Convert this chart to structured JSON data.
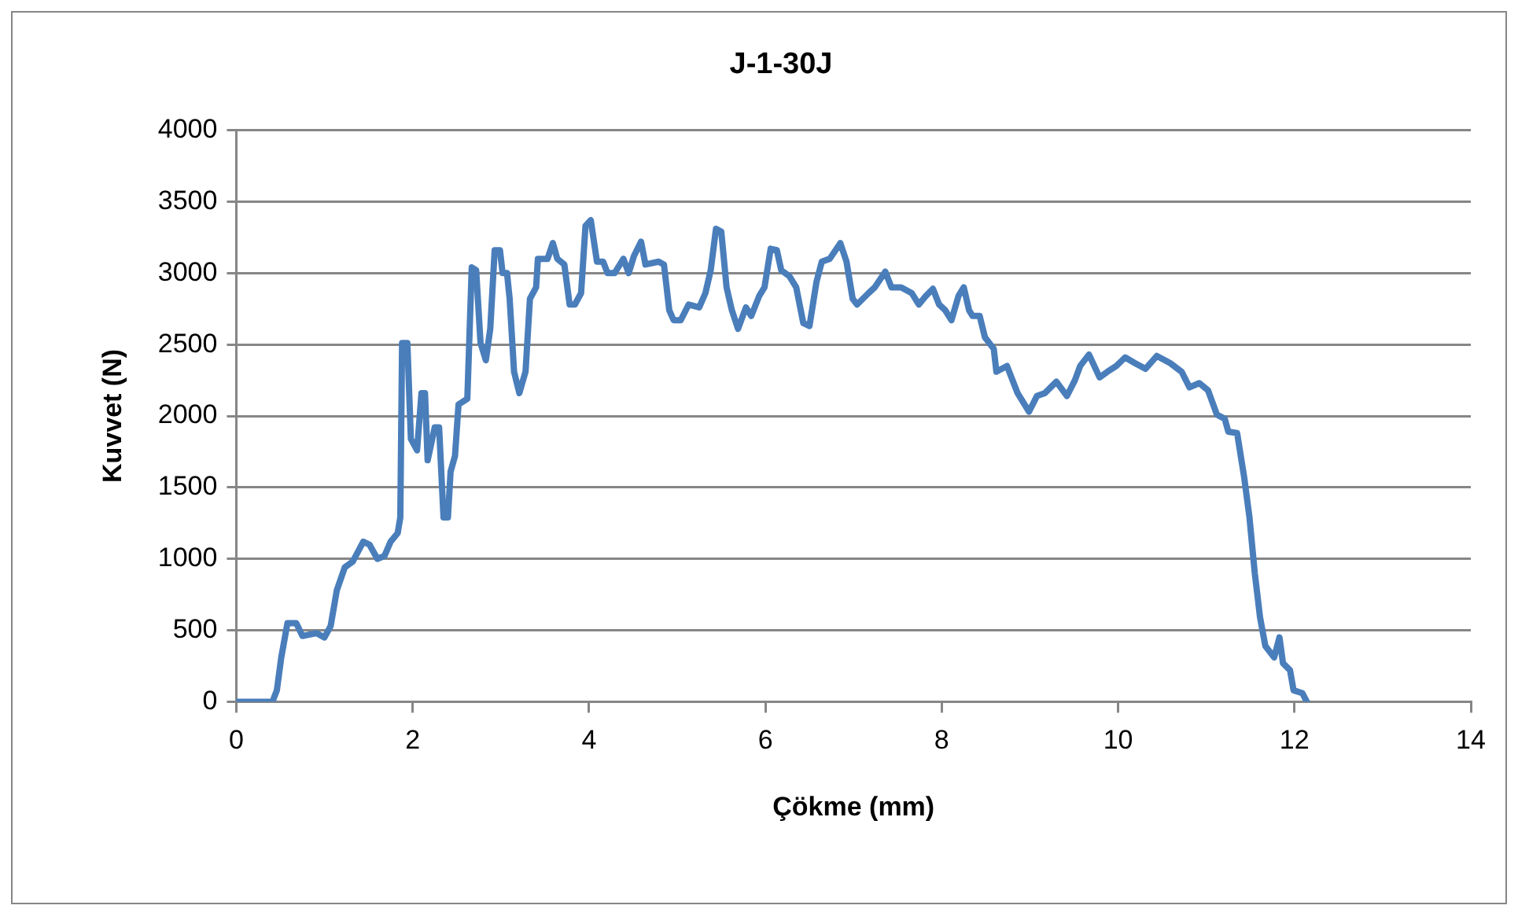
{
  "chart_data": {
    "type": "line",
    "title": "J-1-30J",
    "xlabel": "Çökme (mm)",
    "ylabel": "Kuvvet (N)",
    "xlim": [
      0,
      14
    ],
    "xticks": [
      0,
      2,
      4,
      6,
      8,
      10,
      12,
      14
    ],
    "ylim": [
      0,
      4000
    ],
    "yticks": [
      0,
      500,
      1000,
      1500,
      2000,
      2500,
      3000,
      3500,
      4000
    ],
    "grid": "y",
    "marker": "none",
    "line_style": "solid",
    "x": [
      0,
      0.41,
      0.46,
      0.51,
      0.58,
      0.68,
      0.75,
      0.91,
      1.0,
      1.07,
      1.14,
      1.23,
      1.32,
      1.44,
      1.51,
      1.6,
      1.68,
      1.75,
      1.83,
      1.86,
      1.88,
      1.94,
      1.98,
      2.05,
      2.1,
      2.14,
      2.17,
      2.25,
      2.3,
      2.35,
      2.4,
      2.43,
      2.48,
      2.52,
      2.62,
      2.67,
      2.72,
      2.77,
      2.83,
      2.88,
      2.93,
      2.99,
      3.02,
      3.07,
      3.1,
      3.15,
      3.21,
      3.28,
      3.33,
      3.4,
      3.42,
      3.53,
      3.59,
      3.64,
      3.72,
      3.78,
      3.84,
      3.91,
      3.96,
      4.02,
      4.09,
      4.16,
      4.21,
      4.29,
      4.39,
      4.45,
      4.51,
      4.59,
      4.64,
      4.79,
      4.85,
      4.91,
      4.96,
      5.04,
      5.13,
      5.25,
      5.32,
      5.38,
      5.44,
      5.5,
      5.56,
      5.62,
      5.69,
      5.78,
      5.84,
      5.93,
      5.99,
      6.06,
      6.13,
      6.18,
      6.27,
      6.35,
      6.43,
      6.5,
      6.58,
      6.64,
      6.73,
      6.85,
      6.92,
      6.99,
      7.04,
      7.17,
      7.24,
      7.36,
      7.43,
      7.54,
      7.66,
      7.74,
      7.82,
      7.9,
      7.97,
      8.04,
      8.11,
      8.19,
      8.25,
      8.31,
      8.35,
      8.43,
      8.49,
      8.59,
      8.62,
      8.74,
      8.86,
      8.99,
      9.08,
      9.17,
      9.3,
      9.42,
      9.51,
      9.57,
      9.67,
      9.79,
      9.88,
      9.98,
      10.08,
      10.19,
      10.31,
      10.44,
      10.59,
      10.72,
      10.81,
      10.92,
      11.02,
      11.12,
      11.21,
      11.25,
      11.35,
      11.43,
      11.49,
      11.55,
      11.61,
      11.67,
      11.77,
      11.83,
      11.87,
      11.95,
      11.99,
      12.09,
      12.14
    ],
    "series": [
      {
        "color": "#4a7ebb",
        "values": [
          0,
          0,
          80,
          310,
          550,
          550,
          460,
          480,
          450,
          530,
          780,
          940,
          980,
          1120,
          1100,
          1000,
          1020,
          1120,
          1180,
          1290,
          2510,
          2510,
          1840,
          1760,
          2160,
          2160,
          1690,
          1920,
          1920,
          1290,
          1290,
          1610,
          1720,
          2080,
          2120,
          3040,
          3020,
          2510,
          2390,
          2610,
          3160,
          3160,
          3000,
          3000,
          2820,
          2310,
          2160,
          2310,
          2820,
          2900,
          3100,
          3100,
          3210,
          3100,
          3060,
          2780,
          2780,
          2860,
          3330,
          3370,
          3080,
          3080,
          3000,
          3000,
          3100,
          3000,
          3120,
          3220,
          3060,
          3080,
          3060,
          2740,
          2670,
          2670,
          2780,
          2760,
          2860,
          3020,
          3310,
          3290,
          2900,
          2740,
          2610,
          2760,
          2700,
          2840,
          2900,
          3170,
          3160,
          3020,
          2980,
          2900,
          2650,
          2630,
          2940,
          3080,
          3100,
          3210,
          3080,
          2820,
          2780,
          2860,
          2900,
          3010,
          2900,
          2900,
          2860,
          2780,
          2840,
          2890,
          2780,
          2740,
          2670,
          2840,
          2900,
          2740,
          2700,
          2700,
          2550,
          2470,
          2310,
          2350,
          2160,
          2030,
          2140,
          2160,
          2240,
          2140,
          2250,
          2350,
          2430,
          2270,
          2310,
          2350,
          2410,
          2370,
          2330,
          2420,
          2370,
          2310,
          2200,
          2230,
          2180,
          2010,
          1980,
          1890,
          1880,
          1570,
          1290,
          900,
          590,
          390,
          310,
          450,
          270,
          220,
          80,
          60,
          0
        ]
      }
    ]
  }
}
